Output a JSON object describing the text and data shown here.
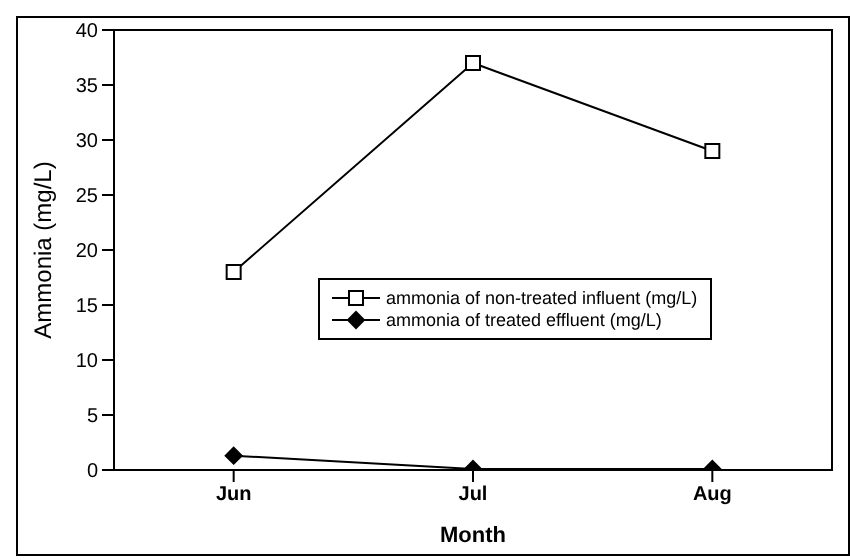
{
  "chart_data": {
    "type": "line",
    "xlabel": "Month",
    "ylabel": "Ammonia (mg/L)",
    "categories": [
      "Jun",
      "Jul",
      "Aug"
    ],
    "series": [
      {
        "name": "ammonia of non-treated influent (mg/L)",
        "color": "#000000",
        "values": [
          18,
          37,
          29
        ],
        "marker": "square"
      },
      {
        "name": "ammonia of treated effluent (mg/L)",
        "color": "#000000",
        "values": [
          1.3,
          0.1,
          0.1
        ],
        "marker": "diamond"
      }
    ],
    "ylim": [
      0,
      40
    ],
    "yticks": [
      0,
      5,
      10,
      15,
      20,
      25,
      30,
      35,
      40
    ],
    "grid": false,
    "legend": "right",
    "line_style": "solid"
  }
}
